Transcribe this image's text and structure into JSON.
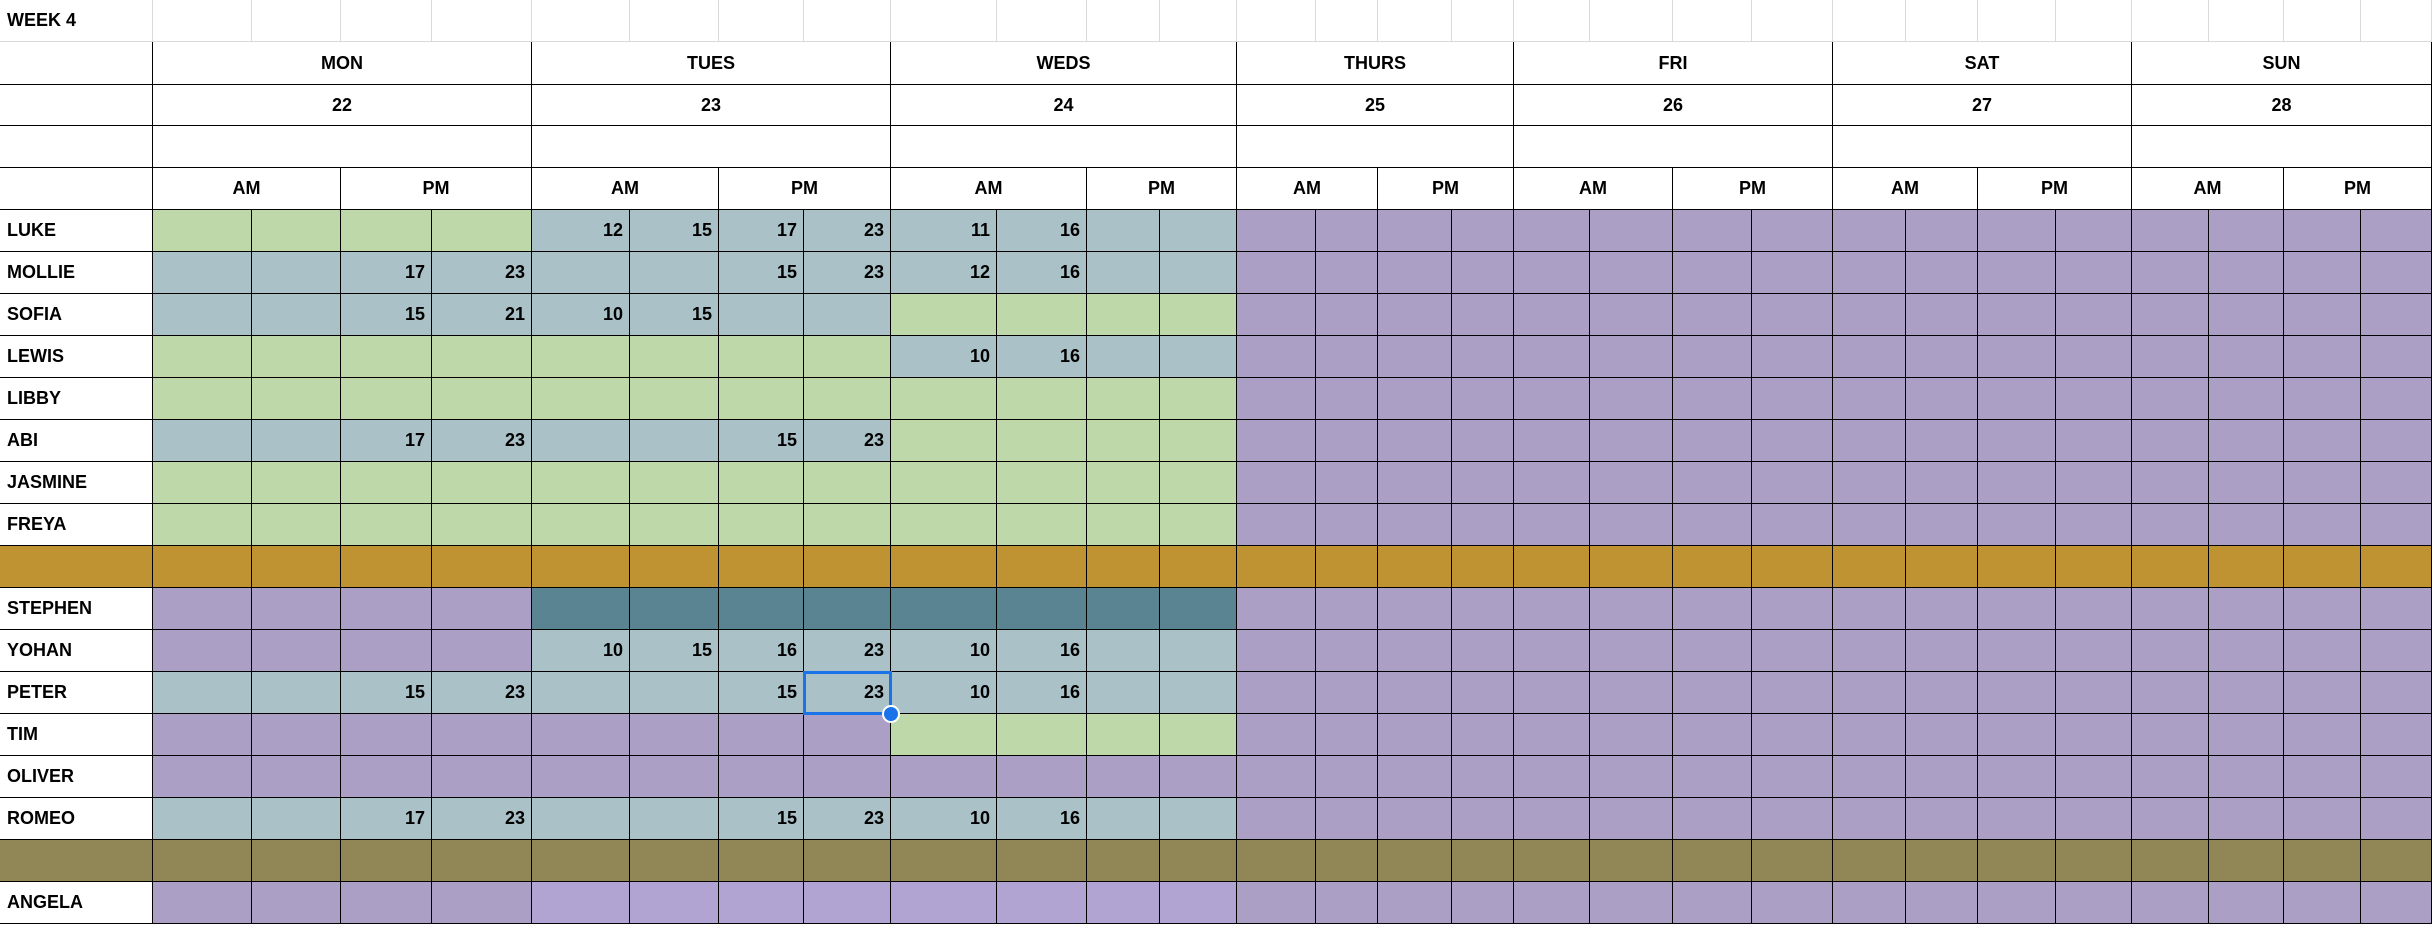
{
  "week_label": "WEEK 4",
  "days": [
    {
      "name": "MON",
      "date": "22"
    },
    {
      "name": "TUES",
      "date": "23"
    },
    {
      "name": "WEDS",
      "date": "24"
    },
    {
      "name": "THURS",
      "date": "25"
    },
    {
      "name": "FRI",
      "date": "26"
    },
    {
      "name": "SAT",
      "date": "27"
    },
    {
      "name": "SUN",
      "date": "28"
    }
  ],
  "period_labels": {
    "am": "AM",
    "pm": "PM"
  },
  "colors": {
    "G": "#bfd8aa",
    "B": "#a9c1c7",
    "P": "#ac9fc5",
    "L": "#b1a4d2",
    "D": "#5a8491",
    "O": "#bf9331",
    "K": "#918656"
  },
  "rows": [
    {
      "name": "LUKE",
      "fills": "GGGGBBBBBBBB",
      "values": [
        "",
        "",
        "",
        "",
        "12",
        "15",
        "17",
        "23",
        "11",
        "16",
        "",
        ""
      ]
    },
    {
      "name": "MOLLIE",
      "fills": "BBBBBBBBBBBB",
      "values": [
        "",
        "",
        "17",
        "23",
        "",
        "",
        "15",
        "23",
        "12",
        "16",
        "",
        ""
      ]
    },
    {
      "name": "SOFIA",
      "fills": "BBBBBBBBGGGG",
      "values": [
        "",
        "",
        "15",
        "21",
        "10",
        "15",
        "",
        "",
        "",
        "",
        "",
        ""
      ]
    },
    {
      "name": "LEWIS",
      "fills": "GGGGGGGGBBBB",
      "values": [
        "",
        "",
        "",
        "",
        "",
        "",
        "",
        "",
        "10",
        "16",
        "",
        ""
      ]
    },
    {
      "name": "LIBBY",
      "fills": "GGGGGGGGGGGG",
      "values": [
        "",
        "",
        "",
        "",
        "",
        "",
        "",
        "",
        "",
        "",
        "",
        ""
      ]
    },
    {
      "name": "ABI",
      "fills": "BBBBBBBBGGGG",
      "values": [
        "",
        "",
        "17",
        "23",
        "",
        "",
        "15",
        "23",
        "",
        "",
        "",
        ""
      ]
    },
    {
      "name": "JASMINE",
      "fills": "GGGGGGGGGGGG",
      "values": [
        "",
        "",
        "",
        "",
        "",
        "",
        "",
        "",
        "",
        "",
        "",
        ""
      ]
    },
    {
      "name": "FREYA",
      "fills": "GGGGGGGGGGGG",
      "values": [
        "",
        "",
        "",
        "",
        "",
        "",
        "",
        "",
        "",
        "",
        "",
        ""
      ]
    },
    {
      "name": "",
      "fills": "OOOOOOOOOOOO",
      "values": [
        "",
        "",
        "",
        "",
        "",
        "",
        "",
        "",
        "",
        "",
        "",
        ""
      ],
      "band": "O"
    },
    {
      "name": "STEPHEN",
      "fills": "PPPPDDDDDDDD",
      "values": [
        "",
        "",
        "",
        "",
        "",
        "",
        "",
        "",
        "",
        "",
        "",
        ""
      ]
    },
    {
      "name": "YOHAN",
      "fills": "PPPPBBBBBBBB",
      "values": [
        "",
        "",
        "",
        "",
        "10",
        "15",
        "16",
        "23",
        "10",
        "16",
        "",
        ""
      ]
    },
    {
      "name": "PETER",
      "fills": "BBBBBBBBBBBB",
      "values": [
        "",
        "",
        "15",
        "23",
        "",
        "",
        "15",
        "23",
        "10",
        "16",
        "",
        ""
      ]
    },
    {
      "name": "TIM",
      "fills": "PPPPPPPPGGGG",
      "values": [
        "",
        "",
        "",
        "",
        "",
        "",
        "",
        "",
        "",
        "",
        "",
        ""
      ]
    },
    {
      "name": "OLIVER",
      "fills": "PPPPPPPPPPPP",
      "values": [
        "",
        "",
        "",
        "",
        "",
        "",
        "",
        "",
        "",
        "",
        "",
        ""
      ]
    },
    {
      "name": "ROMEO",
      "fills": "BBBBBBBBBBBB",
      "values": [
        "",
        "",
        "17",
        "23",
        "",
        "",
        "15",
        "23",
        "10",
        "16",
        "",
        ""
      ]
    },
    {
      "name": "",
      "fills": "KKKKKKKKKKKK",
      "values": [
        "",
        "",
        "",
        "",
        "",
        "",
        "",
        "",
        "",
        "",
        "",
        ""
      ],
      "band": "K"
    },
    {
      "name": "ANGELA",
      "fills": "PPPPLLLLLLLL",
      "values": [
        "",
        "",
        "",
        "",
        "",
        "",
        "",
        "",
        "",
        "",
        "",
        ""
      ]
    }
  ],
  "selected_cell": {
    "row": "PETER",
    "day": "TUES",
    "period": "PM",
    "value": "23"
  }
}
